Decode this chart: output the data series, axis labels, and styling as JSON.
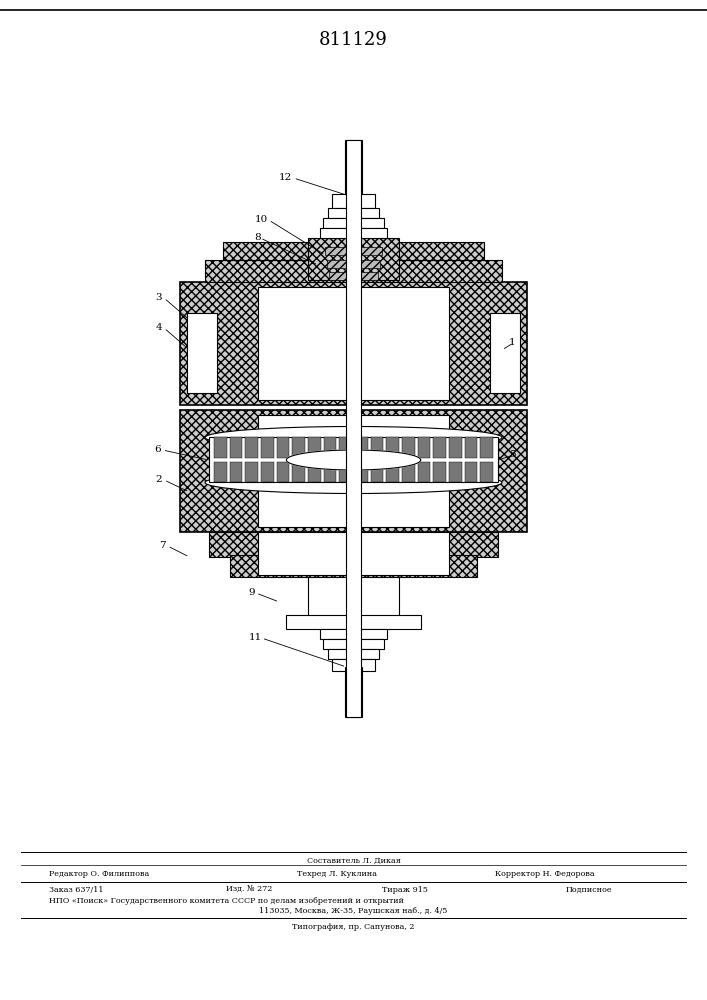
{
  "title": "811129",
  "title_fontsize": 13,
  "bg_color": "#ffffff",
  "line_color": "#000000",
  "footer_composer": "Составитель Л. Дикая",
  "footer_editor": "Редактор О. Филиппова",
  "footer_tech": "Техред Л. Куклина",
  "footer_corrector": "Корректор Н. Федорова",
  "footer_order": "Заказ 637/11",
  "footer_iss": "Изд. № 272",
  "footer_circ": "Тираж 915",
  "footer_sub": "Подписное",
  "footer_org": "НПО «Поиск» Государственного комитета СССР по делам изобретений и открытий",
  "footer_addr": "113035, Москва, Ж-35, Раушская наб., д. 4/5",
  "footer_print": "Типография, пр. Сапунова, 2"
}
